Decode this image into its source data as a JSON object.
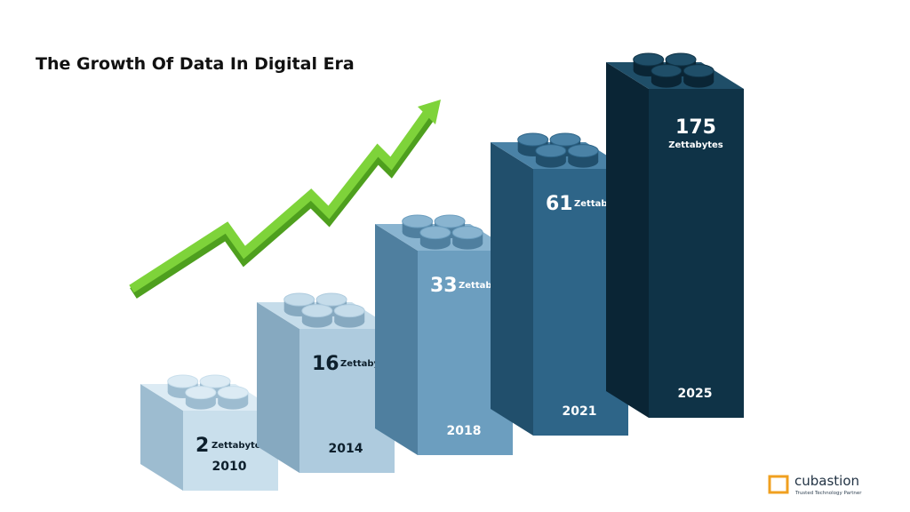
{
  "title": "The Growth Of Data In Digital Era",
  "blocks": [
    {
      "value": "2",
      "unit": "Zettabytes",
      "year": "2010"
    },
    {
      "value": "16",
      "unit": "Zettabytes",
      "year": "2014"
    },
    {
      "value": "33",
      "unit": "Zettabytes",
      "year": "2018"
    },
    {
      "value": "61",
      "unit": "Zettabytes",
      "year": "2021"
    },
    {
      "value": "175",
      "unit": "Zettabytes",
      "year": "2025"
    }
  ],
  "logo": {
    "name": "cubastion",
    "tagline": "Trusted Technology Partner"
  }
}
